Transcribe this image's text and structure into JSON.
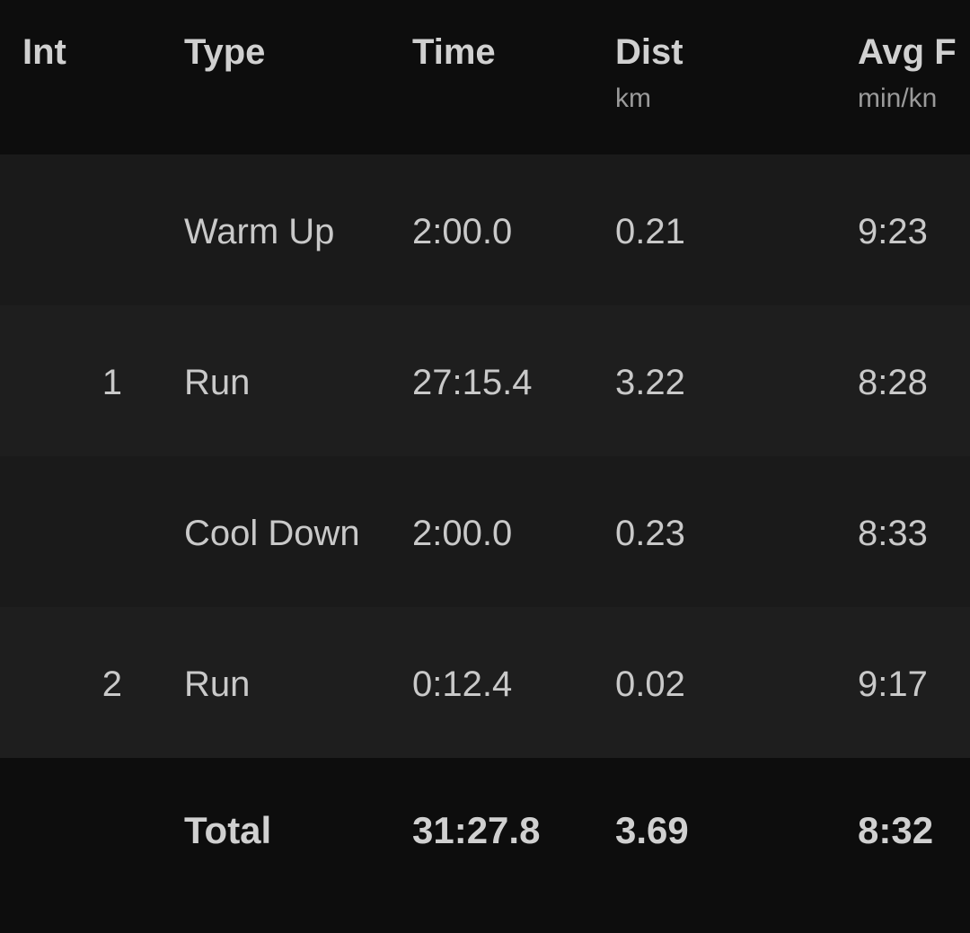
{
  "header": {
    "int": "Int",
    "type": "Type",
    "time": "Time",
    "dist": "Dist",
    "dist_unit": "km",
    "avg": "Avg F",
    "avg_unit": "min/kn"
  },
  "rows": [
    {
      "int": "",
      "type": "Warm Up",
      "time": "2:00.0",
      "dist": "0.21",
      "avg": "9:23"
    },
    {
      "int": "1",
      "type": "Run",
      "time": "27:15.4",
      "dist": "3.22",
      "avg": "8:28"
    },
    {
      "int": "",
      "type": "Cool Down",
      "time": "2:00.0",
      "dist": "0.23",
      "avg": "8:33"
    },
    {
      "int": "2",
      "type": "Run",
      "time": "0:12.4",
      "dist": "0.02",
      "avg": "9:17"
    }
  ],
  "total": {
    "label": "Total",
    "time": "31:27.8",
    "dist": "3.69",
    "avg": "8:32"
  }
}
